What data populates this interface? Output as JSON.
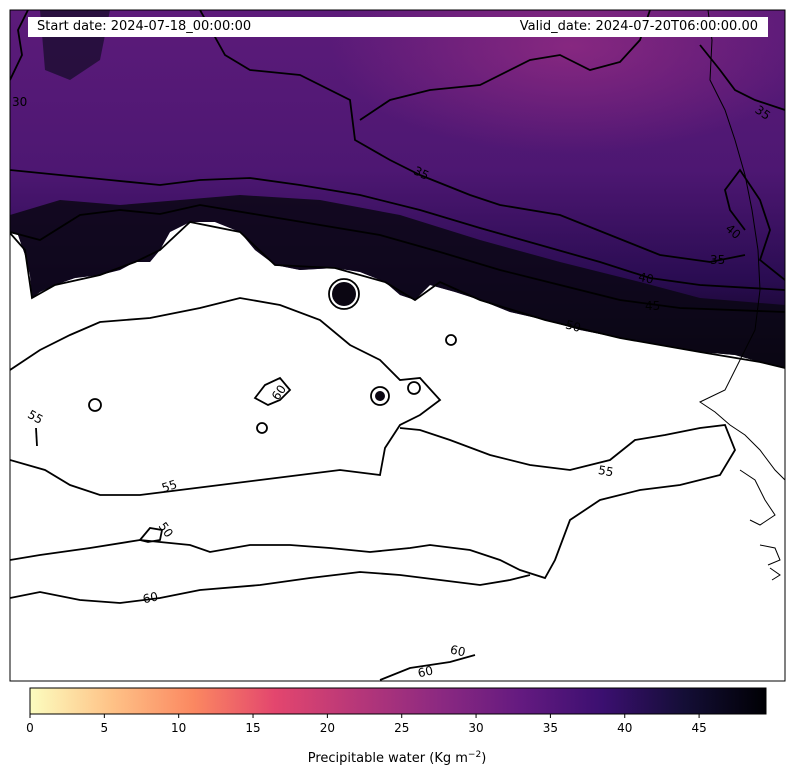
{
  "header": {
    "start_date": "Start date: 2024-07-18_00:00:00",
    "valid_date": "Valid_date: 2024-07-20T06:00:00.00"
  },
  "map": {
    "variable": "Precipitable water",
    "colormap": "magma_r",
    "contour_levels_labeled": [
      "30",
      "35",
      "40",
      "45",
      "50",
      "55",
      "60"
    ]
  },
  "colorbar": {
    "label_text": "Precipitable water (Kg m",
    "label_superscript": "−2",
    "label_close": ")",
    "min": 0,
    "max": 49.5,
    "ticks": [
      "0",
      "5",
      "10",
      "15",
      "20",
      "25",
      "30",
      "35",
      "40",
      "45"
    ],
    "colors": [
      "#fcfdbf",
      "#fec287",
      "#fb8861",
      "#e3466e",
      "#b73779",
      "#8c2981",
      "#641a80",
      "#3b0f70",
      "#140e36",
      "#000004"
    ]
  }
}
